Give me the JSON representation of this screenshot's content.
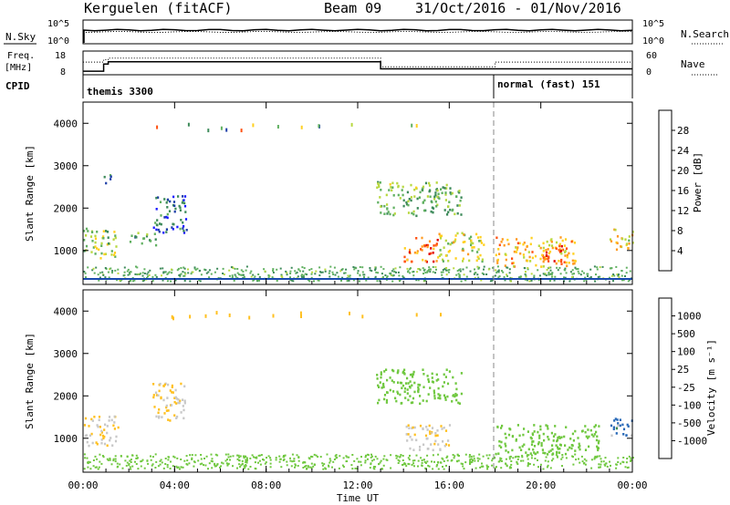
{
  "header": {
    "station": "Kerguelen (fitACF)",
    "beam": "Beam 09",
    "date_range": "31/Oct/2016 - 01/Nov/2016"
  },
  "noise_panel": {
    "left_label": "N.Sky",
    "right_label": "N.Search",
    "left_ticks": [
      "10^5",
      "10^0"
    ],
    "right_ticks": [
      "10^5",
      "10^0"
    ]
  },
  "freq_panel": {
    "left_label_line1": "Freq.",
    "left_label_line2": "[MHz]",
    "right_label": "Nave",
    "left_ticks": [
      "18",
      "8"
    ],
    "right_ticks": [
      "60",
      "0"
    ]
  },
  "cpid": {
    "label": "CPID",
    "mode1": "themis 3300",
    "mode2": "normal (fast) 151"
  },
  "power_panel": {
    "ylabel": "Slant Range [km]",
    "yticks": [
      "4000",
      "3000",
      "2000",
      "1000"
    ],
    "colorbar_label": "Power [dB]",
    "colorbar_ticks": [
      "28",
      "24",
      "20",
      "16",
      "12",
      "8",
      "4"
    ],
    "colors": [
      "#1a1aff",
      "#1f3fa8",
      "#3d8a5a",
      "#60b060",
      "#b8d840",
      "#ffd020",
      "#ff9a20",
      "#ff5010",
      "#e00000"
    ]
  },
  "velocity_panel": {
    "ylabel": "Slant Range [km]",
    "yticks": [
      "4000",
      "3000",
      "2000",
      "1000"
    ],
    "colorbar_label": "Velocity [m s⁻¹]",
    "colorbar_ticks": [
      "1000",
      "500",
      "100",
      "25",
      "-25",
      "-100",
      "-500",
      "-1000"
    ],
    "colors": [
      "#1a3ab0",
      "#2a6ab8",
      "#3a8a50",
      "#70c840",
      "#c8c8c8",
      "#ffc020",
      "#ff9020",
      "#ff5010",
      "#e00000"
    ]
  },
  "xaxis": {
    "label": "Time UT",
    "ticks": [
      "00:00",
      "04:00",
      "08:00",
      "12:00",
      "16:00",
      "20:00",
      "00:00"
    ]
  },
  "chart_data": [
    {
      "type": "line",
      "series": [
        {
          "name": "N.Sky",
          "values_description_x_hours": [
            0,
            24
          ],
          "level": "~10^4"
        }
      ],
      "xlim_hours": [
        0,
        24
      ]
    },
    {
      "type": "line",
      "x_hours": [
        0,
        0.9,
        0.9,
        1.1,
        1.1,
        13.0,
        13.0,
        18.0,
        18.0,
        24.0
      ],
      "series": [
        {
          "name": "Freq. [MHz]",
          "values": [
            9.5,
            9.5,
            12.5,
            12.5,
            13.5,
            13.5,
            10.5,
            10.5,
            10.5,
            10.5
          ]
        },
        {
          "name": "Nave",
          "values": [
            32,
            32,
            38,
            38,
            42,
            42,
            20,
            20,
            32,
            32
          ]
        }
      ],
      "ylim_freq": [
        8,
        18
      ],
      "ylim_nave": [
        0,
        60
      ]
    },
    {
      "type": "heatmap",
      "title": "Power [dB]",
      "xlabel": "Time UT",
      "ylabel": "Slant Range [km]",
      "xlim_hours": [
        0,
        24
      ],
      "ylim_km": [
        200,
        4500
      ],
      "clim": [
        0,
        30
      ],
      "regions": [
        {
          "t0": 0.0,
          "t1": 1.5,
          "r0": 800,
          "r1": 1500,
          "power": 14
        },
        {
          "t0": 0.8,
          "t1": 1.2,
          "r0": 2500,
          "r1": 2800,
          "power": 6
        },
        {
          "t0": 2.0,
          "t1": 3.2,
          "r0": 1100,
          "r1": 1400,
          "power": 10
        },
        {
          "t0": 3.0,
          "t1": 4.5,
          "r0": 1400,
          "r1": 2300,
          "power": 6
        },
        {
          "t0": 12.8,
          "t1": 16.5,
          "r0": 1800,
          "r1": 2600,
          "power": 12
        },
        {
          "t0": 14.0,
          "t1": 15.5,
          "r0": 700,
          "r1": 1300,
          "power": 24
        },
        {
          "t0": 15.5,
          "t1": 17.5,
          "r0": 700,
          "r1": 1400,
          "power": 16
        },
        {
          "t0": 18.0,
          "t1": 21.5,
          "r0": 600,
          "r1": 1300,
          "power": 20
        },
        {
          "t0": 20.0,
          "t1": 21.0,
          "r0": 700,
          "r1": 1100,
          "power": 26
        },
        {
          "t0": 23.0,
          "t1": 24.0,
          "r0": 1000,
          "r1": 1500,
          "power": 18
        }
      ]
    },
    {
      "type": "heatmap",
      "title": "Velocity [m s-1]",
      "xlabel": "Time UT",
      "ylabel": "Slant Range [km]",
      "xlim_hours": [
        0,
        24
      ],
      "ylim_km": [
        200,
        4500
      ],
      "clim": [
        -1000,
        1000
      ],
      "regions": [
        {
          "t0": 0.0,
          "t1": 1.5,
          "r0": 800,
          "r1": 1500,
          "velocity": -100
        },
        {
          "t0": 3.0,
          "t1": 4.5,
          "r0": 1400,
          "r1": 2300,
          "velocity": -100
        },
        {
          "t0": 12.8,
          "t1": 16.5,
          "r0": 1800,
          "r1": 2600,
          "velocity": 0
        },
        {
          "t0": 14.0,
          "t1": 16.0,
          "r0": 700,
          "r1": 1300,
          "velocity": -100
        },
        {
          "t0": 18.0,
          "t1": 22.5,
          "r0": 600,
          "r1": 1300,
          "velocity": 0
        },
        {
          "t0": 23.0,
          "t1": 24.0,
          "r0": 1000,
          "r1": 1500,
          "velocity": 200
        }
      ]
    }
  ]
}
